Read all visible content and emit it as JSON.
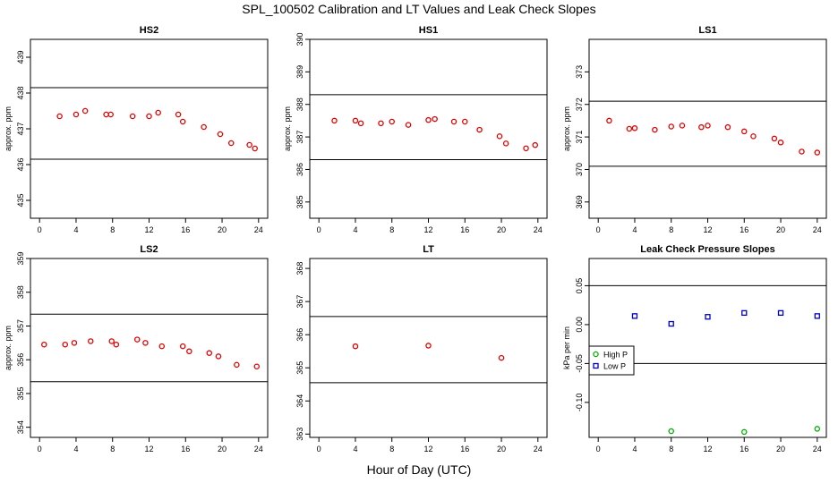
{
  "title": "SPL_100502  Calibration and LT Values and Leak Check Slopes",
  "xlabel": "Hour of Day (UTC)",
  "chart_data": [
    {
      "type": "scatter",
      "title": "HS2",
      "ylabel": "approx. ppm",
      "xlim": [
        -1,
        25
      ],
      "ylim": [
        434.5,
        439.5
      ],
      "xticks": [
        0,
        4,
        8,
        12,
        16,
        20,
        24
      ],
      "yticks": [
        435,
        436,
        437,
        438,
        439
      ],
      "hlines": [
        436.15,
        438.15
      ],
      "series": [
        {
          "color": "#e00000",
          "marker": "circle",
          "x": [
            2.2,
            4,
            5,
            7.3,
            7.8,
            10.2,
            12,
            13,
            15.2,
            15.7,
            18,
            19.8,
            21,
            23,
            23.6
          ],
          "y": [
            437.35,
            437.4,
            437.5,
            437.4,
            437.4,
            437.35,
            437.35,
            437.45,
            437.4,
            437.2,
            437.05,
            436.85,
            436.6,
            436.55,
            436.45
          ]
        }
      ]
    },
    {
      "type": "scatter",
      "title": "HS1",
      "ylabel": "approx. ppm",
      "xlim": [
        -1,
        25
      ],
      "ylim": [
        384.5,
        390
      ],
      "xticks": [
        0,
        4,
        8,
        12,
        16,
        20,
        24
      ],
      "yticks": [
        385,
        386,
        387,
        388,
        389,
        390
      ],
      "hlines": [
        386.3,
        388.3
      ],
      "series": [
        {
          "color": "#e00000",
          "marker": "circle",
          "x": [
            1.7,
            4,
            4.6,
            6.8,
            8,
            9.8,
            12,
            12.7,
            14.8,
            16,
            17.6,
            19.8,
            20.5,
            22.7,
            23.7
          ],
          "y": [
            387.5,
            387.5,
            387.42,
            387.42,
            387.47,
            387.37,
            387.52,
            387.55,
            387.47,
            387.47,
            387.22,
            387.02,
            386.8,
            386.65,
            386.75
          ]
        }
      ]
    },
    {
      "type": "scatter",
      "title": "LS1",
      "ylabel": "approx. ppm",
      "xlim": [
        -1,
        25
      ],
      "ylim": [
        368.5,
        374
      ],
      "xticks": [
        0,
        4,
        8,
        12,
        16,
        20,
        24
      ],
      "yticks": [
        369,
        370,
        371,
        372,
        373
      ],
      "hlines": [
        370.1,
        372.1
      ],
      "series": [
        {
          "color": "#e00000",
          "marker": "circle",
          "x": [
            1.2,
            3.4,
            4,
            6.2,
            8,
            9.2,
            11.3,
            12,
            14.2,
            16,
            17,
            19.3,
            20,
            22.3,
            24
          ],
          "y": [
            371.5,
            371.25,
            371.27,
            371.22,
            371.32,
            371.35,
            371.3,
            371.35,
            371.3,
            371.17,
            371.02,
            370.95,
            370.83,
            370.55,
            370.52
          ]
        }
      ]
    },
    {
      "type": "scatter",
      "title": "LS2",
      "ylabel": "approx. ppm",
      "xlim": [
        -1,
        25
      ],
      "ylim": [
        353.7,
        359
      ],
      "xticks": [
        0,
        4,
        8,
        12,
        16,
        20,
        24
      ],
      "yticks": [
        354,
        355,
        356,
        357,
        358,
        359
      ],
      "hlines": [
        355.35,
        357.35
      ],
      "series": [
        {
          "color": "#e00000",
          "marker": "circle",
          "x": [
            0.5,
            2.8,
            3.8,
            5.6,
            7.9,
            8.4,
            10.7,
            11.6,
            13.4,
            15.7,
            16.4,
            18.6,
            19.6,
            21.6,
            23.8
          ],
          "y": [
            356.45,
            356.45,
            356.5,
            356.55,
            356.55,
            356.45,
            356.6,
            356.5,
            356.4,
            356.4,
            356.25,
            356.2,
            356.1,
            355.85,
            355.8
          ]
        }
      ]
    },
    {
      "type": "scatter",
      "title": "LT",
      "ylabel": "",
      "xlim": [
        -1,
        25
      ],
      "ylim": [
        362.9,
        368.3
      ],
      "xticks": [
        0,
        4,
        8,
        12,
        16,
        20,
        24
      ],
      "yticks": [
        363,
        364,
        365,
        366,
        367,
        368
      ],
      "hlines": [
        364.55,
        366.55
      ],
      "series": [
        {
          "color": "#e00000",
          "marker": "circle",
          "x": [
            4,
            12,
            20
          ],
          "y": [
            365.65,
            365.67,
            365.3
          ]
        }
      ]
    },
    {
      "type": "scatter",
      "title": "Leak Check Pressure Slopes",
      "ylabel": "kPa per min",
      "xlim": [
        -1,
        25
      ],
      "ylim": [
        -0.145,
        0.085
      ],
      "xticks": [
        0,
        4,
        8,
        12,
        16,
        20,
        24
      ],
      "yticks": [
        -0.1,
        -0.05,
        0.0,
        0.05
      ],
      "ytick_labels": [
        "-0.10",
        "-0.05",
        "0.00",
        "0.05"
      ],
      "hlines": [
        -0.05,
        0.05
      ],
      "legend": "bottom-left",
      "series": [
        {
          "name": "High P",
          "color": "#00b000",
          "marker": "circle",
          "x": [
            8,
            16,
            24
          ],
          "y": [
            -0.137,
            -0.138,
            -0.134
          ]
        },
        {
          "name": "Low P",
          "color": "#0000c8",
          "marker": "square",
          "x": [
            4,
            8,
            12,
            16,
            20,
            24
          ],
          "y": [
            0.011,
            0.001,
            0.01,
            0.015,
            0.015,
            0.011
          ]
        }
      ]
    }
  ]
}
